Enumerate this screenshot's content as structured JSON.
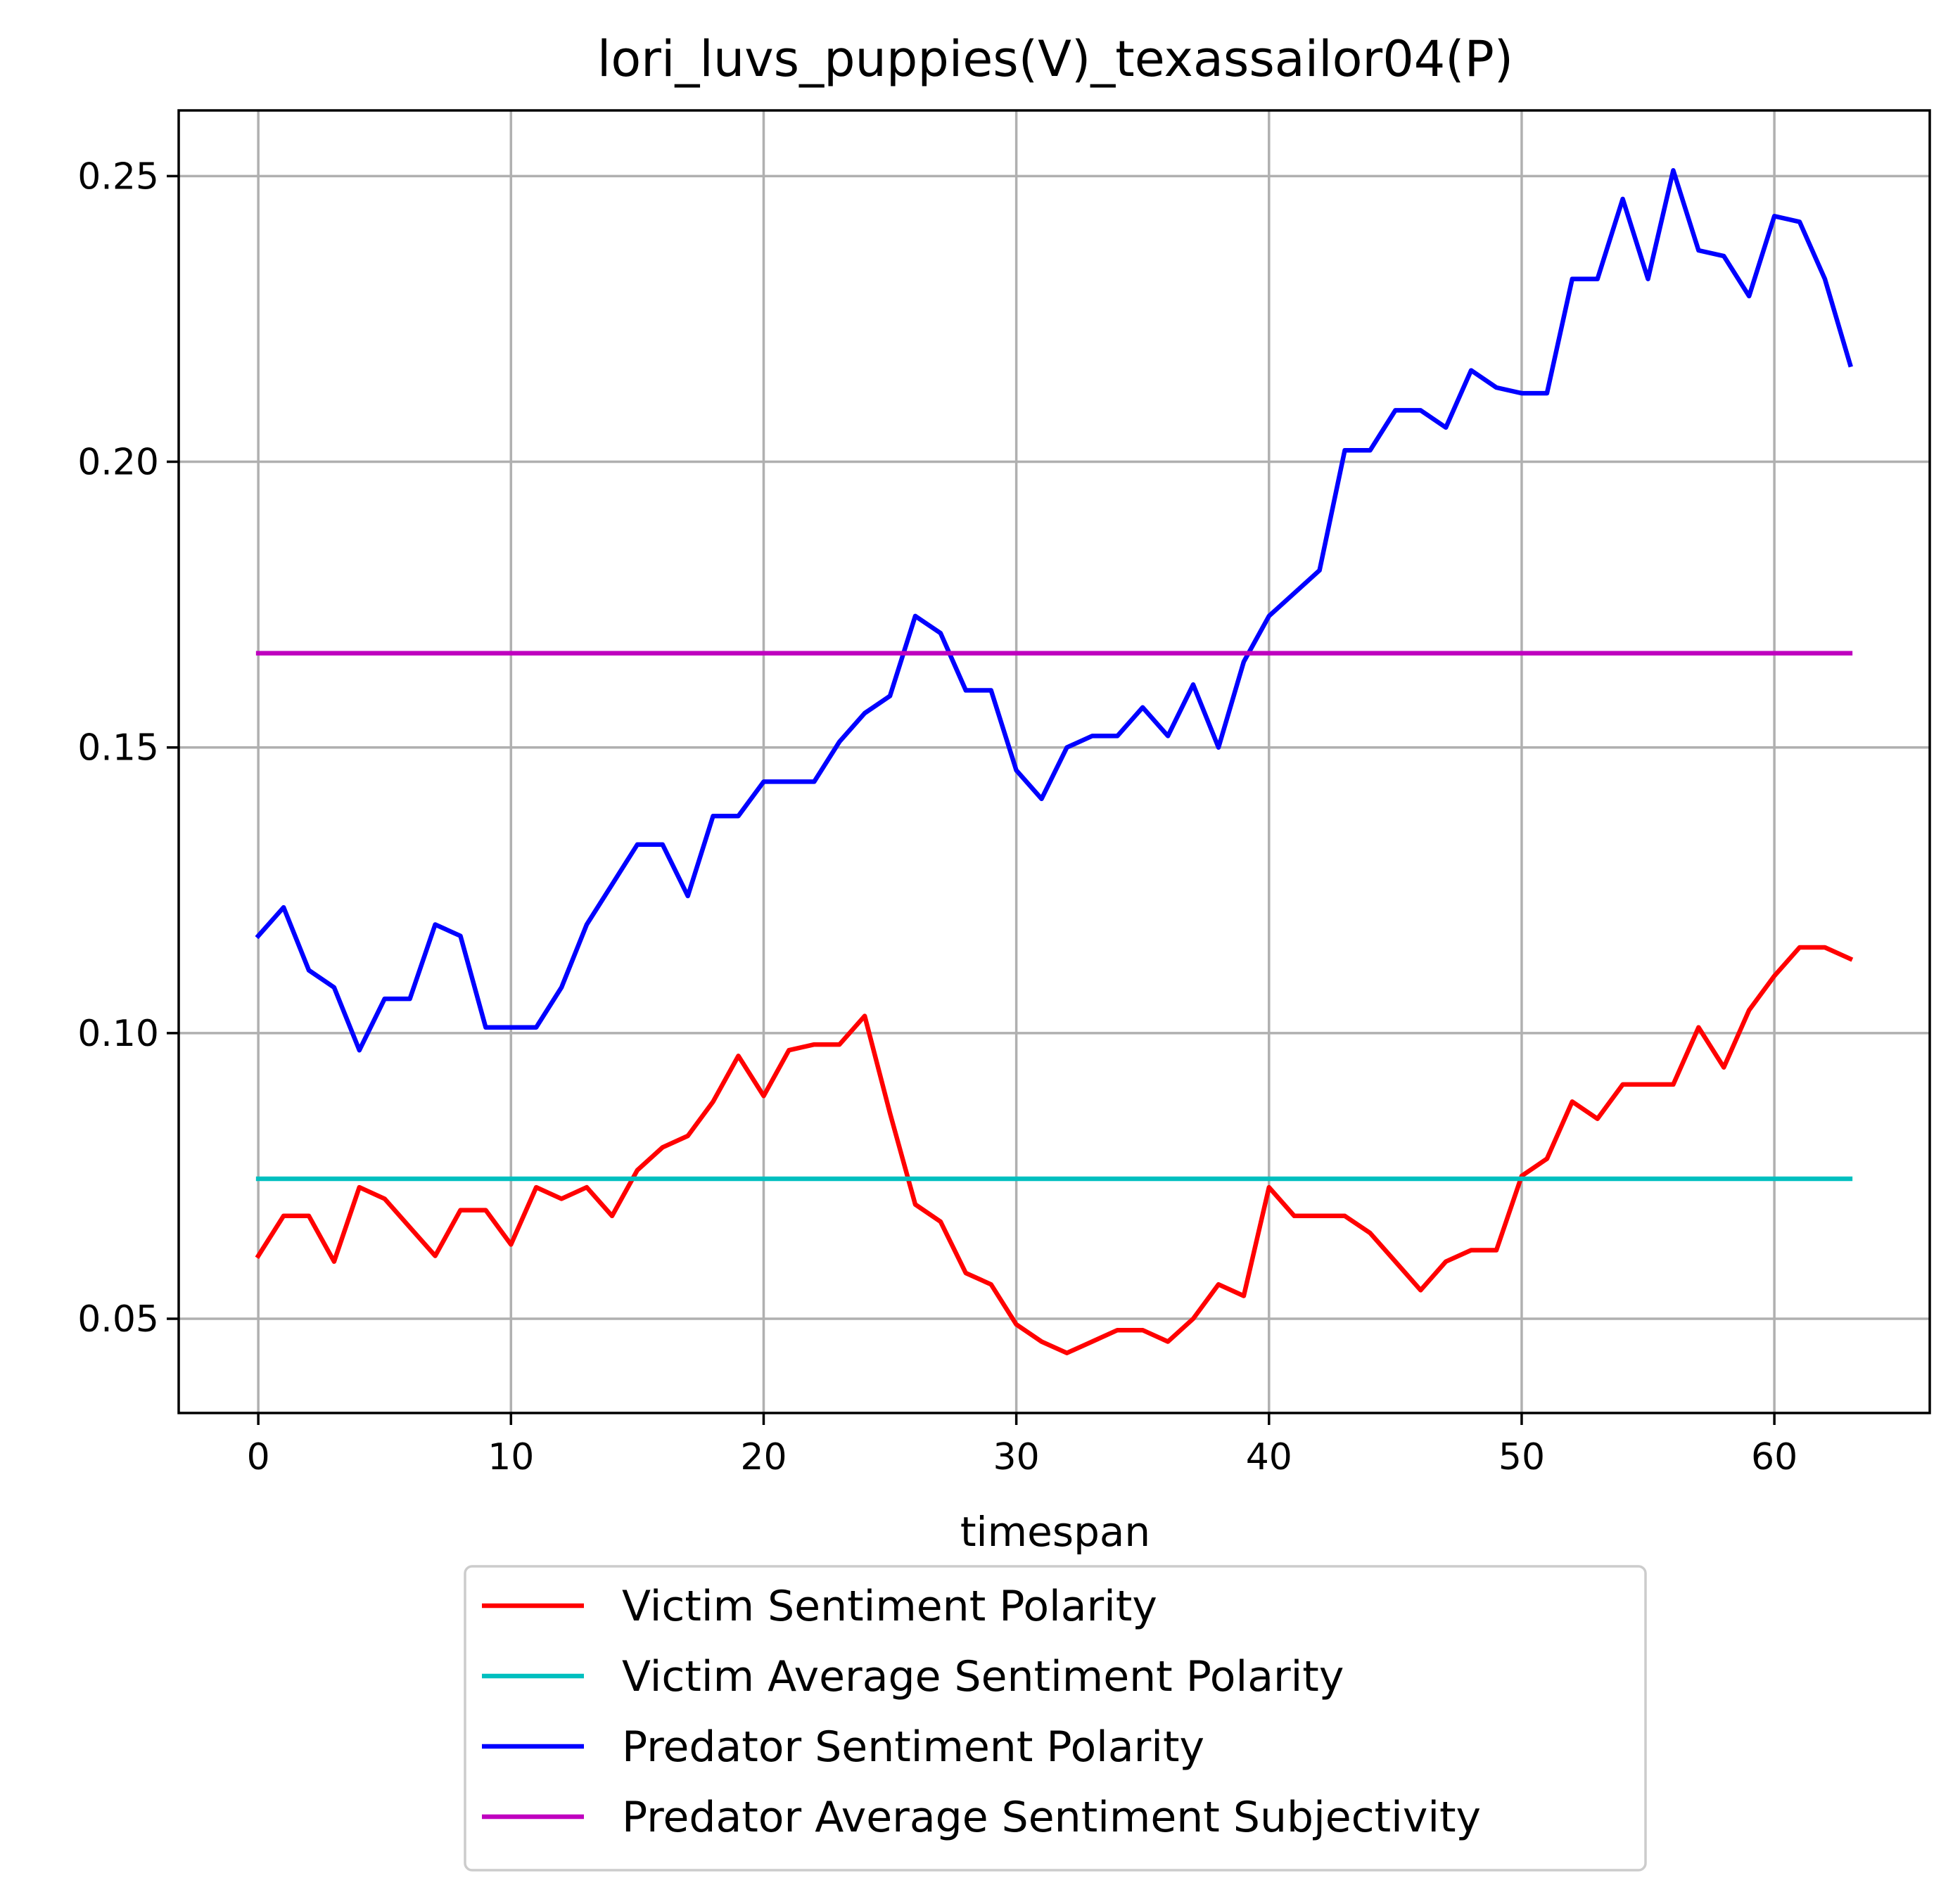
{
  "chart_data": {
    "type": "line",
    "title": "lori_luvs_puppies(V)_texassailor04(P)",
    "xlabel": "timespan",
    "ylabel": "",
    "xlim": [
      -3.15,
      66.15
    ],
    "ylim": [
      0.0335,
      0.2615
    ],
    "xticks": [
      0,
      10,
      20,
      30,
      40,
      50,
      60
    ],
    "xtick_labels": [
      "0",
      "10",
      "20",
      "30",
      "40",
      "50",
      "60"
    ],
    "yticks": [
      0.05,
      0.1,
      0.15,
      0.2,
      0.25
    ],
    "ytick_labels": [
      "0.05",
      "0.10",
      "0.15",
      "0.20",
      "0.25"
    ],
    "grid": true,
    "legend_position": "below-center",
    "series": [
      {
        "name": "Victim Sentiment Polarity",
        "color": "#ff0000",
        "y": [
          0.061,
          0.068,
          0.068,
          0.06,
          0.073,
          0.071,
          0.066,
          0.061,
          0.069,
          0.069,
          0.063,
          0.073,
          0.071,
          0.073,
          0.068,
          0.076,
          0.08,
          0.082,
          0.088,
          0.096,
          0.089,
          0.097,
          0.098,
          0.098,
          0.103,
          0.086,
          0.07,
          0.067,
          0.058,
          0.056,
          0.049,
          0.046,
          0.044,
          0.046,
          0.048,
          0.048,
          0.046,
          0.05,
          0.056,
          0.054,
          0.073,
          0.068,
          0.068,
          0.068,
          0.065,
          0.06,
          0.055,
          0.06,
          0.062,
          0.062,
          0.075,
          0.078,
          0.088,
          0.085,
          0.091,
          0.091,
          0.091,
          0.101,
          0.094,
          0.104,
          0.11,
          0.115,
          0.115,
          0.113
        ]
      },
      {
        "name": "Victim Average Sentiment Polarity",
        "color": "#00bfbf",
        "y": [
          0.0745,
          0.0745
        ]
      },
      {
        "name": "Predator Sentiment Polarity",
        "color": "#0000ff",
        "y": [
          0.117,
          0.122,
          0.111,
          0.108,
          0.097,
          0.106,
          0.106,
          0.119,
          0.117,
          0.101,
          0.101,
          0.101,
          0.108,
          0.119,
          0.126,
          0.133,
          0.133,
          0.124,
          0.138,
          0.138,
          0.144,
          0.144,
          0.144,
          0.151,
          0.156,
          0.159,
          0.173,
          0.17,
          0.16,
          0.16,
          0.146,
          0.141,
          0.15,
          0.152,
          0.152,
          0.157,
          0.152,
          0.161,
          0.15,
          0.165,
          0.173,
          0.177,
          0.181,
          0.202,
          0.202,
          0.209,
          0.209,
          0.206,
          0.216,
          0.213,
          0.212,
          0.212,
          0.232,
          0.232,
          0.246,
          0.232,
          0.251,
          0.237,
          0.236,
          0.229,
          0.243,
          0.242,
          0.232,
          0.217
        ]
      },
      {
        "name": "Predator Average Sentiment Subjectivity",
        "color": "#bf00bf",
        "y": [
          0.1665,
          0.1665
        ]
      }
    ]
  }
}
